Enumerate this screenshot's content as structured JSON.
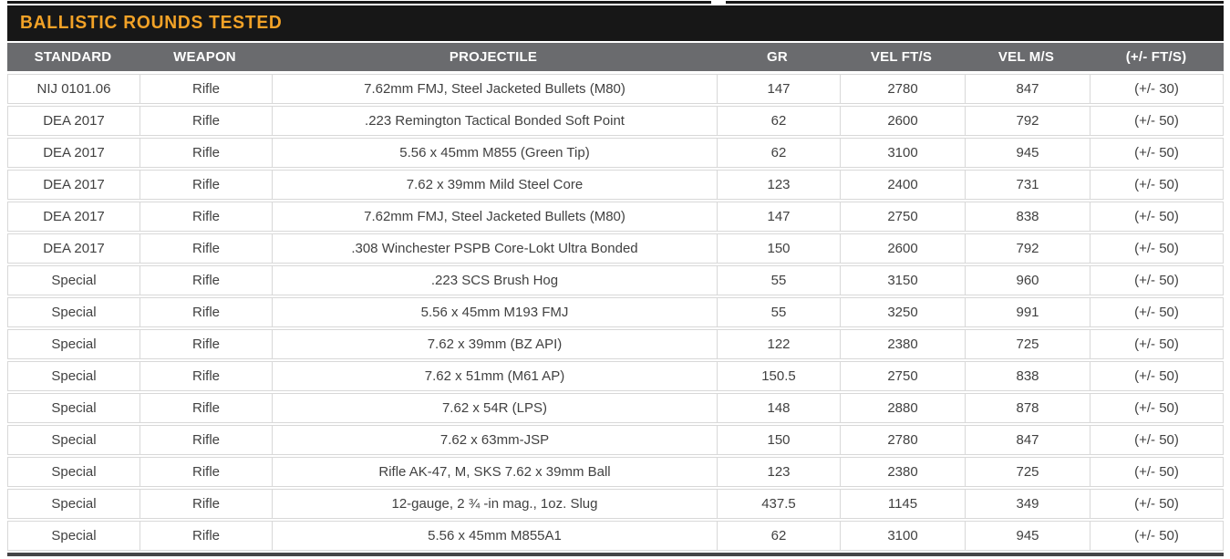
{
  "title": "BALLISTIC ROUNDS TESTED",
  "colors": {
    "title_bar_bg": "#171717",
    "title_text": "#F2A227",
    "header_bg": "#6A6B6E",
    "header_text": "#FFFFFF",
    "row_text": "#414141",
    "row_border": "#D8D8D8",
    "bottom_bar": "#454547"
  },
  "table": {
    "columns": [
      "STANDARD",
      "WEAPON",
      "PROJECTILE",
      "GR",
      "VEL FT/S",
      "VEL M/S",
      "(+/- FT/S)"
    ],
    "rows": [
      [
        "NIJ 0101.06",
        "Rifle",
        "7.62mm FMJ, Steel Jacketed Bullets (M80)",
        "147",
        "2780",
        "847",
        "(+/- 30)"
      ],
      [
        "DEA 2017",
        "Rifle",
        ".223 Remington Tactical Bonded Soft Point",
        "62",
        "2600",
        "792",
        "(+/- 50)"
      ],
      [
        "DEA 2017",
        "Rifle",
        "5.56 x 45mm M855 (Green Tip)",
        "62",
        "3100",
        "945",
        "(+/- 50)"
      ],
      [
        "DEA 2017",
        "Rifle",
        "7.62 x 39mm Mild Steel Core",
        "123",
        "2400",
        "731",
        "(+/- 50)"
      ],
      [
        "DEA 2017",
        "Rifle",
        "7.62mm FMJ, Steel Jacketed Bullets (M80)",
        "147",
        "2750",
        "838",
        "(+/- 50)"
      ],
      [
        "DEA 2017",
        "Rifle",
        ".308 Winchester PSPB Core-Lokt Ultra Bonded",
        "150",
        "2600",
        "792",
        "(+/- 50)"
      ],
      [
        "Special",
        "Rifle",
        ".223 SCS Brush Hog",
        "55",
        "3150",
        "960",
        "(+/- 50)"
      ],
      [
        "Special",
        "Rifle",
        "5.56 x 45mm M193 FMJ",
        "55",
        "3250",
        "991",
        "(+/- 50)"
      ],
      [
        "Special",
        "Rifle",
        "7.62 x 39mm (BZ API)",
        "122",
        "2380",
        "725",
        "(+/- 50)"
      ],
      [
        "Special",
        "Rifle",
        "7.62 x 51mm (M61 AP)",
        "150.5",
        "2750",
        "838",
        "(+/- 50)"
      ],
      [
        "Special",
        "Rifle",
        "7.62 x 54R (LPS)",
        "148",
        "2880",
        "878",
        "(+/- 50)"
      ],
      [
        "Special",
        "Rifle",
        "7.62 x 63mm-JSP",
        "150",
        "2780",
        "847",
        "(+/- 50)"
      ],
      [
        "Special",
        "Rifle",
        "Rifle AK-47, M, SKS 7.62 x 39mm Ball",
        "123",
        "2380",
        "725",
        "(+/- 50)"
      ],
      [
        "Special",
        "Rifle",
        "12-gauge, 2 ¾ -in mag., 1oz. Slug",
        "437.5",
        "1145",
        "349",
        "(+/- 50)"
      ],
      [
        "Special",
        "Rifle",
        "5.56 x 45mm M855A1",
        "62",
        "3100",
        "945",
        "(+/- 50)"
      ]
    ]
  }
}
